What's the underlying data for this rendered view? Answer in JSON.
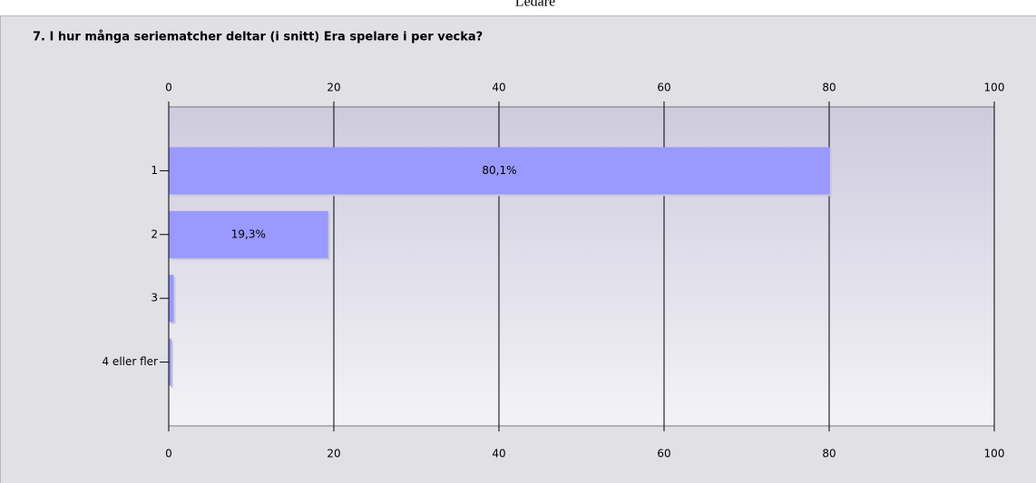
{
  "header": "Ledare",
  "chart_data": {
    "type": "barh",
    "title": "7. I hur många seriematcher deltar (i snitt) Era spelare i per vecka?",
    "categories": [
      "1",
      "2",
      "3",
      "4 eller fler"
    ],
    "values": [
      80.1,
      19.3,
      0.6,
      0.3
    ],
    "value_labels": [
      "80,1%",
      "19,3%",
      null,
      null
    ],
    "color": "#9999ff",
    "xlim": [
      0,
      100
    ],
    "xticks": [
      0,
      20,
      40,
      60,
      80,
      100
    ],
    "grid": true
  }
}
